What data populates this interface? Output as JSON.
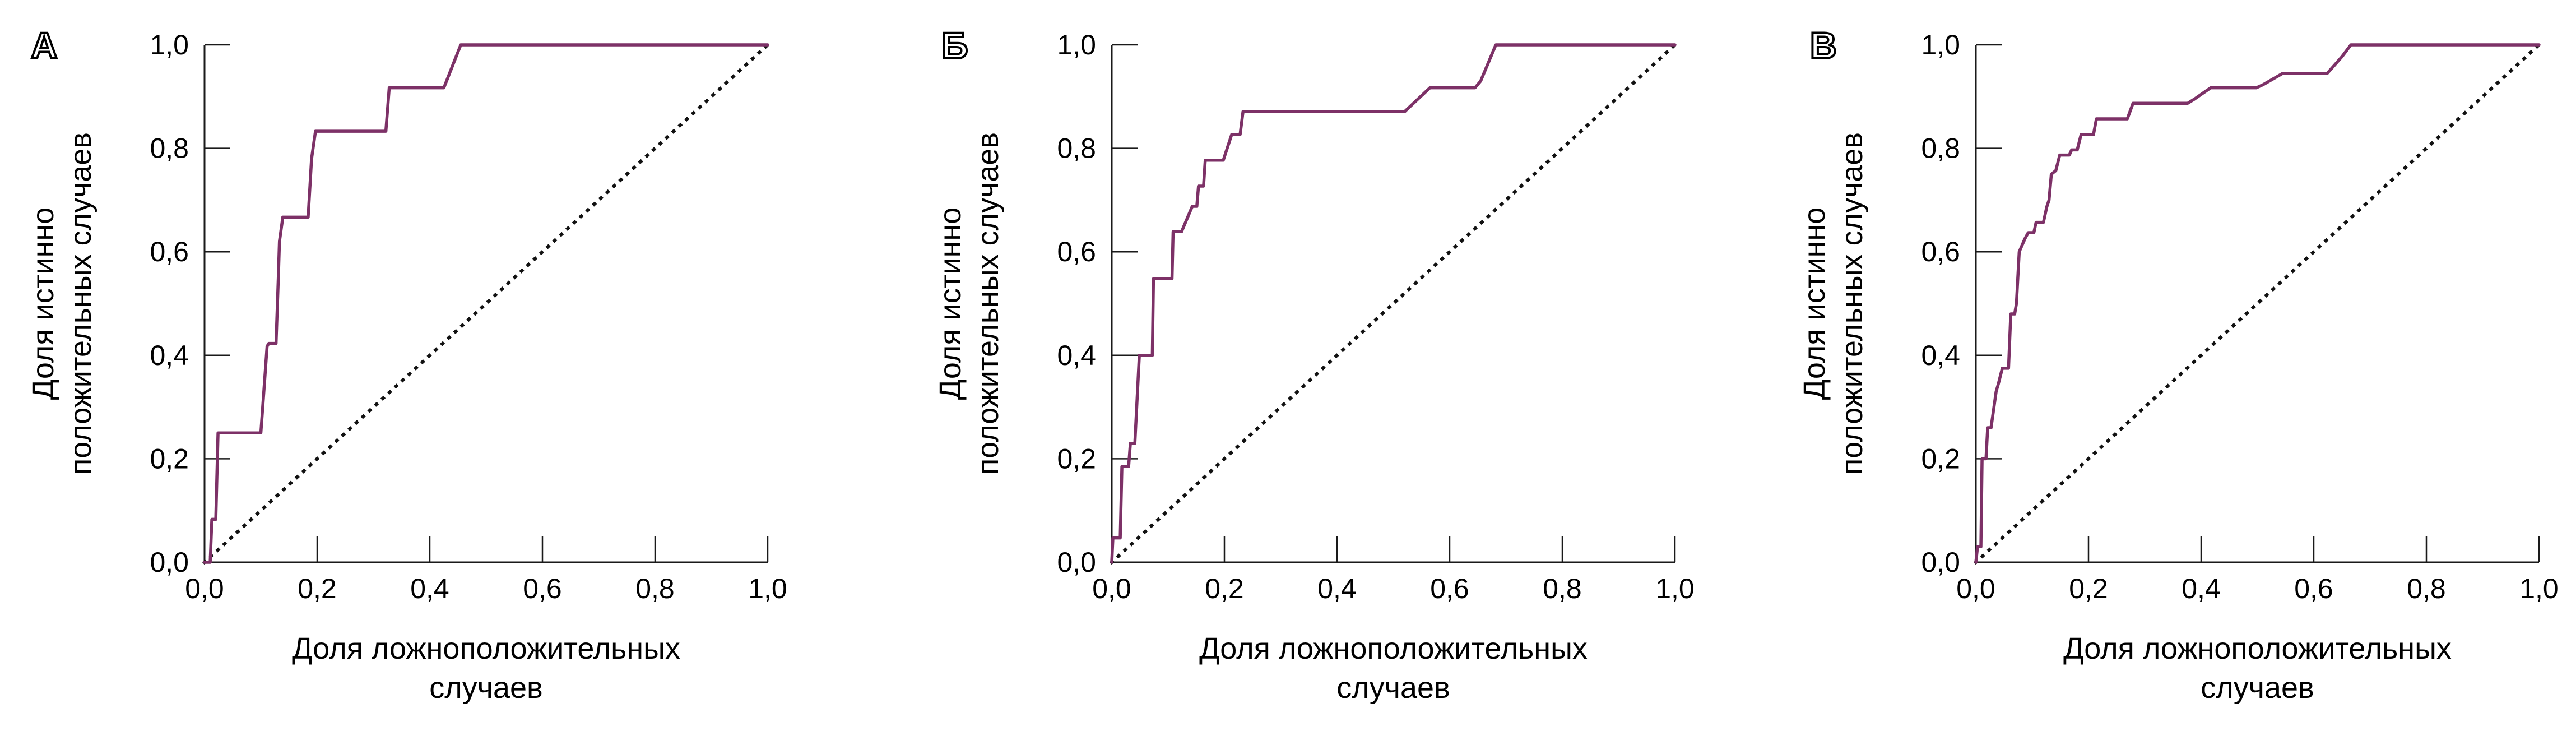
{
  "figure": {
    "background": "#ffffff",
    "text_color": "#000000",
    "axis_color": "#1a1a1a",
    "description": "Three ROC curve panels"
  },
  "chart_data": [
    {
      "type": "line",
      "panel_label": "А",
      "xlabel_lines": [
        "Доля ложноположительных",
        "случаев"
      ],
      "ylabel_lines": [
        "Доля истинно",
        "положительных случаев"
      ],
      "x_tick_labels": [
        "0,0",
        "0,2",
        "0,4",
        "0,6",
        "0,8",
        "1,0"
      ],
      "y_tick_labels": [
        "0,0",
        "0,2",
        "0,4",
        "0,6",
        "0,8",
        "1,0"
      ],
      "x_tick_values": [
        0,
        0.2,
        0.4,
        0.6,
        0.8,
        1.0
      ],
      "y_tick_values": [
        0,
        0.2,
        0.4,
        0.6,
        0.8,
        1.0
      ],
      "xlim": [
        0,
        1
      ],
      "ylim": [
        0,
        1
      ],
      "grid": false,
      "curve_color": "#7d3167",
      "reference_line": {
        "style": "dotted",
        "from": [
          0,
          0
        ],
        "to": [
          1,
          1
        ],
        "color": "#111111"
      },
      "series": [
        {
          "name": "ROC",
          "points": [
            [
              0,
              0
            ],
            [
              0.01,
              0
            ],
            [
              0.013,
              0.083
            ],
            [
              0.02,
              0.083
            ],
            [
              0.024,
              0.25
            ],
            [
              0.1,
              0.25
            ],
            [
              0.106,
              0.34
            ],
            [
              0.111,
              0.417
            ],
            [
              0.114,
              0.423
            ],
            [
              0.127,
              0.423
            ],
            [
              0.131,
              0.55
            ],
            [
              0.133,
              0.62
            ],
            [
              0.139,
              0.667
            ],
            [
              0.184,
              0.667
            ],
            [
              0.19,
              0.78
            ],
            [
              0.197,
              0.833
            ],
            [
              0.322,
              0.833
            ],
            [
              0.328,
              0.917
            ],
            [
              0.425,
              0.917
            ],
            [
              0.455,
              1.0
            ],
            [
              1,
              1
            ]
          ]
        }
      ]
    },
    {
      "type": "line",
      "panel_label": "Б",
      "xlabel_lines": [
        "Доля ложноположительных",
        "случаев"
      ],
      "ylabel_lines": [
        "Доля истинно",
        "положительных случаев"
      ],
      "x_tick_labels": [
        "0,0",
        "0,2",
        "0,4",
        "0,6",
        "0,8",
        "1,0"
      ],
      "y_tick_labels": [
        "0,0",
        "0,2",
        "0,4",
        "0,6",
        "0,8",
        "1,0"
      ],
      "x_tick_values": [
        0,
        0.2,
        0.4,
        0.6,
        0.8,
        1.0
      ],
      "y_tick_values": [
        0,
        0.2,
        0.4,
        0.6,
        0.8,
        1.0
      ],
      "xlim": [
        0,
        1
      ],
      "ylim": [
        0,
        1
      ],
      "grid": false,
      "curve_color": "#7d3167",
      "reference_line": {
        "style": "dotted",
        "from": [
          0,
          0
        ],
        "to": [
          1,
          1
        ],
        "color": "#111111"
      },
      "series": [
        {
          "name": "ROC",
          "points": [
            [
              0,
              0
            ],
            [
              0.002,
              0.047
            ],
            [
              0.015,
              0.047
            ],
            [
              0.018,
              0.185
            ],
            [
              0.03,
              0.185
            ],
            [
              0.033,
              0.23
            ],
            [
              0.041,
              0.23
            ],
            [
              0.049,
              0.4
            ],
            [
              0.072,
              0.4
            ],
            [
              0.074,
              0.548
            ],
            [
              0.107,
              0.548
            ],
            [
              0.109,
              0.639
            ],
            [
              0.124,
              0.639
            ],
            [
              0.143,
              0.688
            ],
            [
              0.151,
              0.688
            ],
            [
              0.154,
              0.727
            ],
            [
              0.163,
              0.727
            ],
            [
              0.166,
              0.777
            ],
            [
              0.198,
              0.777
            ],
            [
              0.213,
              0.827
            ],
            [
              0.228,
              0.827
            ],
            [
              0.233,
              0.871
            ],
            [
              0.52,
              0.871
            ],
            [
              0.565,
              0.917
            ],
            [
              0.645,
              0.917
            ],
            [
              0.655,
              0.93
            ],
            [
              0.682,
              1.0
            ],
            [
              1,
              1
            ]
          ]
        }
      ]
    },
    {
      "type": "line",
      "panel_label": "В",
      "xlabel_lines": [
        "Доля ложноположительных",
        "случаев"
      ],
      "ylabel_lines": [
        "Доля истинно",
        "положительных случаев"
      ],
      "x_tick_labels": [
        "0,0",
        "0,2",
        "0,4",
        "0,6",
        "0,8",
        "1,0"
      ],
      "y_tick_labels": [
        "0,0",
        "0,2",
        "0,4",
        "0,6",
        "0,8",
        "1,0"
      ],
      "x_tick_values": [
        0,
        0.2,
        0.4,
        0.6,
        0.8,
        1.0
      ],
      "y_tick_values": [
        0,
        0.2,
        0.4,
        0.6,
        0.8,
        1.0
      ],
      "xlim": [
        0,
        1
      ],
      "ylim": [
        0,
        1
      ],
      "grid": false,
      "curve_color": "#7d3167",
      "reference_line": {
        "style": "dotted",
        "from": [
          0,
          0
        ],
        "to": [
          1,
          1
        ],
        "color": "#111111"
      },
      "series": [
        {
          "name": "ROC",
          "points": [
            [
              0,
              0
            ],
            [
              0.003,
              0.03
            ],
            [
              0.009,
              0.03
            ],
            [
              0.011,
              0.2
            ],
            [
              0.018,
              0.2
            ],
            [
              0.021,
              0.26
            ],
            [
              0.027,
              0.26
            ],
            [
              0.036,
              0.33
            ],
            [
              0.04,
              0.345
            ],
            [
              0.047,
              0.375
            ],
            [
              0.058,
              0.375
            ],
            [
              0.062,
              0.48
            ],
            [
              0.069,
              0.48
            ],
            [
              0.072,
              0.5
            ],
            [
              0.077,
              0.6
            ],
            [
              0.087,
              0.625
            ],
            [
              0.093,
              0.637
            ],
            [
              0.103,
              0.637
            ],
            [
              0.107,
              0.657
            ],
            [
              0.12,
              0.657
            ],
            [
              0.126,
              0.687
            ],
            [
              0.13,
              0.7
            ],
            [
              0.134,
              0.75
            ],
            [
              0.142,
              0.757
            ],
            [
              0.149,
              0.787
            ],
            [
              0.166,
              0.787
            ],
            [
              0.17,
              0.797
            ],
            [
              0.18,
              0.797
            ],
            [
              0.187,
              0.827
            ],
            [
              0.209,
              0.827
            ],
            [
              0.214,
              0.857
            ],
            [
              0.269,
              0.857
            ],
            [
              0.279,
              0.887
            ],
            [
              0.376,
              0.887
            ],
            [
              0.388,
              0.895
            ],
            [
              0.417,
              0.917
            ],
            [
              0.498,
              0.917
            ],
            [
              0.51,
              0.923
            ],
            [
              0.545,
              0.945
            ],
            [
              0.624,
              0.945
            ],
            [
              0.65,
              0.977
            ],
            [
              0.666,
              1.0
            ],
            [
              1,
              1
            ]
          ]
        }
      ]
    }
  ]
}
